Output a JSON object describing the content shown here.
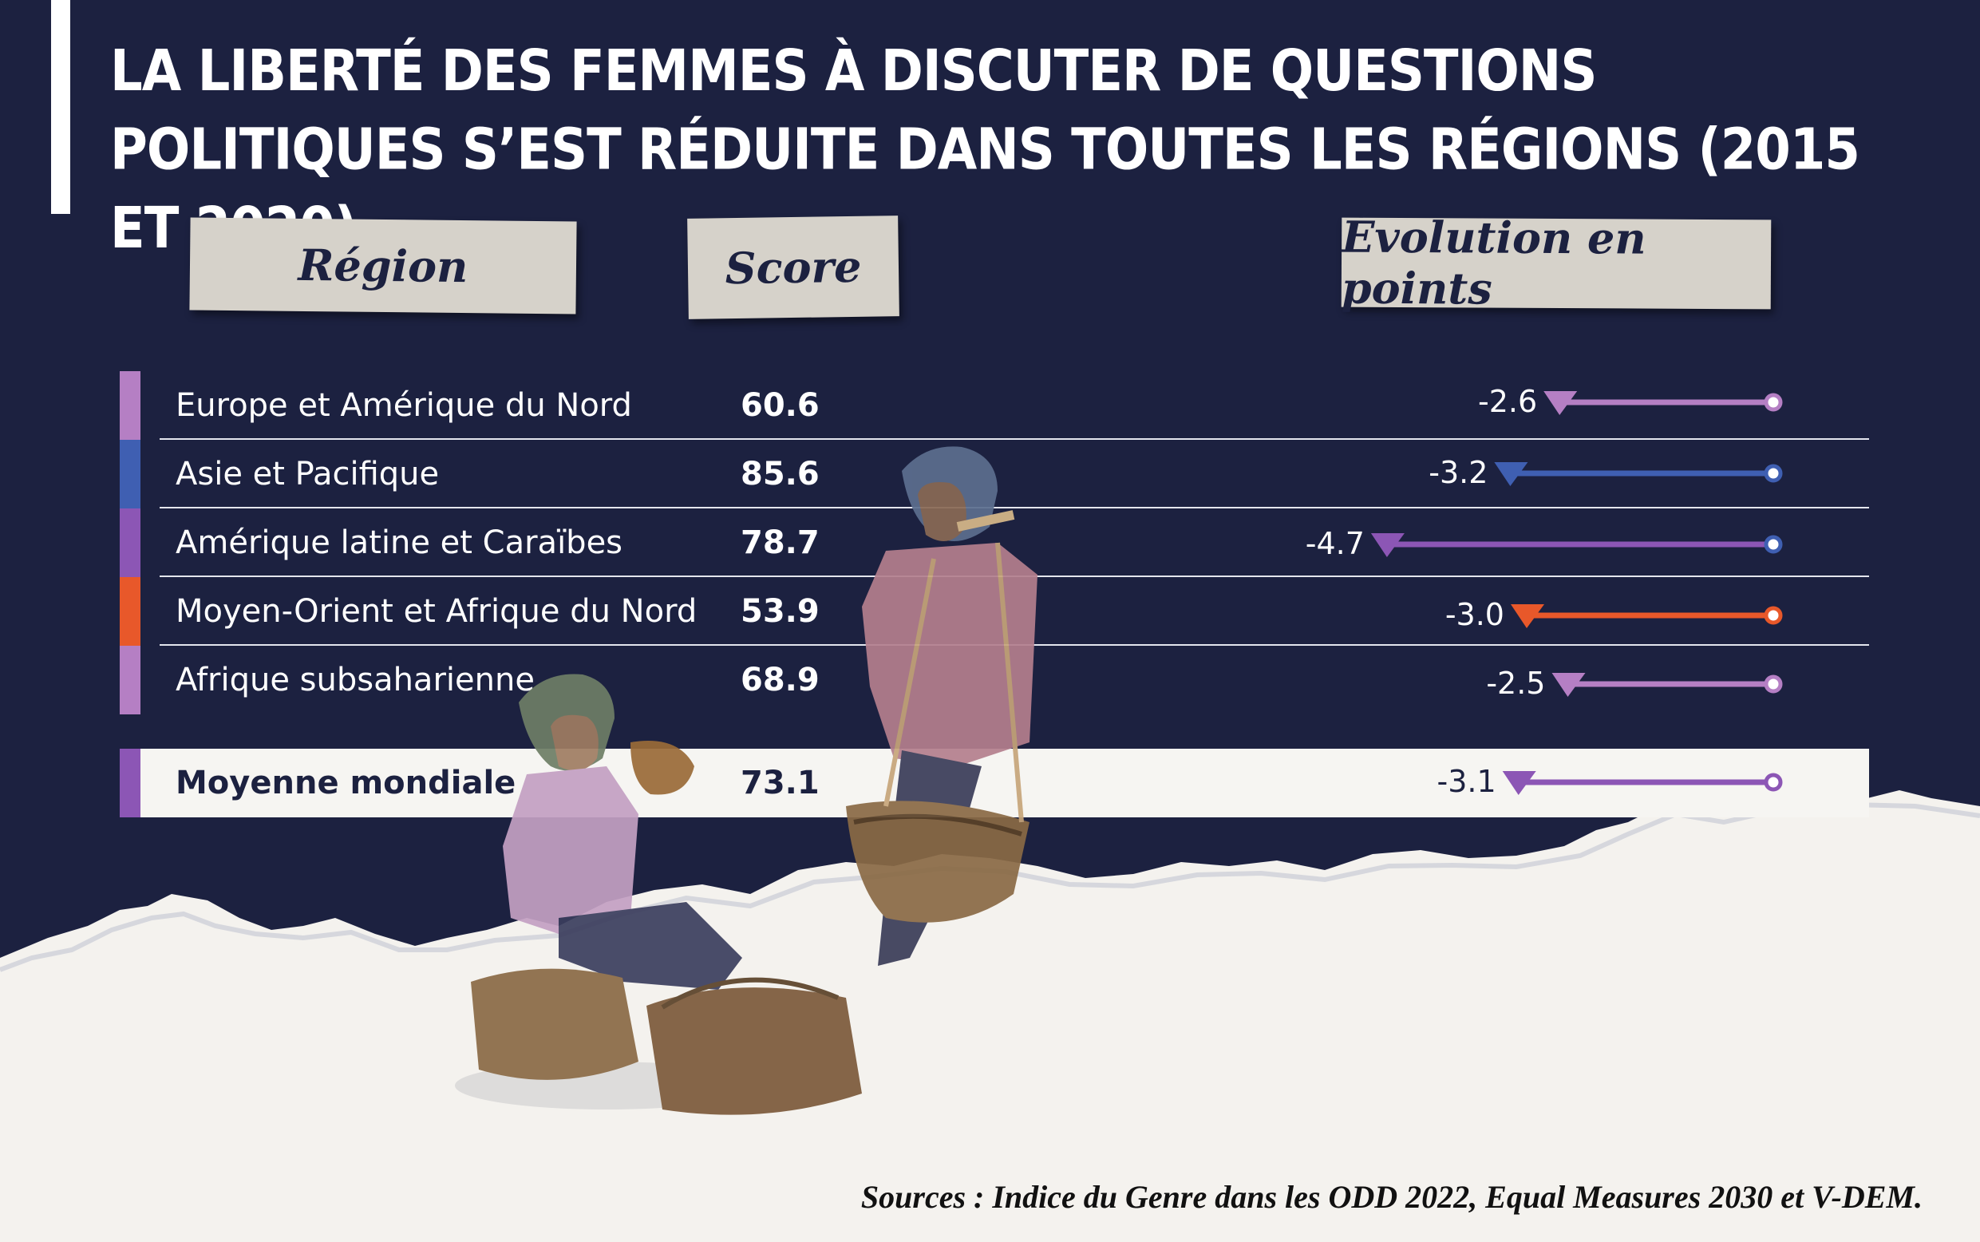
{
  "title": "LA LIBERTÉ DES FEMMES À DISCUTER DE QUESTIONS POLITIQUES S’EST RÉDUITE DANS TOUTES LES RÉGIONS (2015 ET 2020)",
  "headers": {
    "region": "Région",
    "score": "Score",
    "evolution": "Évolution en points"
  },
  "chart_data": {
    "type": "table",
    "rows": [
      {
        "region": "Europe et Amérique du Nord",
        "score": "60.6",
        "change": -2.6,
        "change_label": "-2.6",
        "color": "#b57fc4"
      },
      {
        "region": "Asie et Pacifique",
        "score": "85.6",
        "change": -3.2,
        "change_label": "-3.2",
        "color": "#3f5fb2"
      },
      {
        "region": "Amérique latine et Caraïbes",
        "score": "78.7",
        "change": -4.7,
        "change_label": "-4.7",
        "color": "#8c56b5",
        "end_color": "#3f5fb2"
      },
      {
        "region": "Moyen-Orient et Afrique du Nord",
        "score": "53.9",
        "change": -3.0,
        "change_label": "-3.0",
        "color": "#e8582a"
      },
      {
        "region": "Afrique subsaharienne",
        "score": "68.9",
        "change": -2.5,
        "change_label": "-2.5",
        "color": "#b57fc4"
      }
    ],
    "world": {
      "region": "Moyenne mondiale",
      "score": "73.1",
      "change": -3.1,
      "change_label": "-3.1",
      "color": "#8c56b5"
    }
  },
  "sources": "Sources : Indice du Genre dans les ODD 2022, Equal Measures 2030 et V-DEM."
}
